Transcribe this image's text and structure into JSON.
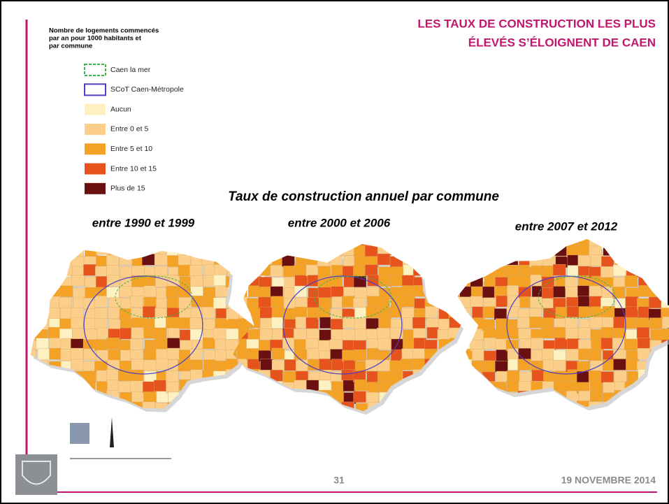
{
  "header": {
    "title_lines": [
      "LES TAUX DE CONSTRUCTION LES PLUS",
      "ÉLEVÉS S’ÉLOIGNENT DE CAEN"
    ]
  },
  "legend": {
    "title_lines": [
      "Nombre de logements commencés",
      "par an  pour 1000 habitants et",
      "par commune"
    ],
    "items": [
      {
        "label": "Caen la mer",
        "color": "#3bb54a",
        "style": "dashed-outline"
      },
      {
        "label": "SCoT Caen-Métropole",
        "color": "#4b3fc4",
        "style": "outline"
      },
      {
        "label": "Aucun",
        "color": "#fdf1c2",
        "style": "fill"
      },
      {
        "label": "Entre 0 et 5",
        "color": "#fbcf8a",
        "style": "fill"
      },
      {
        "label": "Entre 5 et 10",
        "color": "#f4a226",
        "style": "fill"
      },
      {
        "label": "Entre 10 et 15",
        "color": "#e6531d",
        "style": "fill"
      },
      {
        "label": "Plus de 15",
        "color": "#6a1010",
        "style": "fill"
      }
    ]
  },
  "subtitle": "Taux de construction annuel par commune",
  "maps": [
    {
      "label": "entre 1990 et 1999"
    },
    {
      "label": "entre 2000 et 2006"
    },
    {
      "label": "entre 2007 et 2012"
    }
  ],
  "footer": {
    "page": "31",
    "date": "19 NOVEMBRE 2014"
  }
}
